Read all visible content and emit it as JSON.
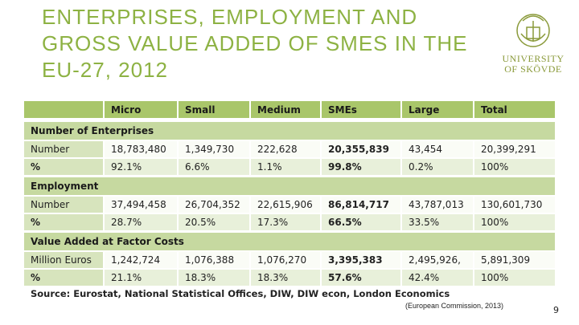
{
  "title_lines": [
    "ENTERPRISES, EMPLOYMENT AND",
    "GROSS VALUE ADDED OF SMES IN THE",
    "EU-27, 2012"
  ],
  "logo": [
    "UNIVERSITY",
    "OF SKÖVDE"
  ],
  "table": {
    "header": [
      "Micro",
      "Small",
      "Medium",
      "SMEs",
      "Large",
      "Total"
    ],
    "sections": [
      {
        "title": "Number of Enterprises",
        "rows": [
          {
            "label": "Number",
            "cells": [
              "18,783,480",
              "1,349,730",
              "222,628",
              "20,355,839",
              "43,454",
              "20,399,291"
            ]
          },
          {
            "label": "%",
            "cells": [
              "92.1%",
              "6.6%",
              "1.1%",
              "99.8%",
              "0.2%",
              "100%"
            ]
          }
        ]
      },
      {
        "title": "Employment",
        "rows": [
          {
            "label": "Number",
            "cells": [
              "37,494,458",
              "26,704,352",
              "22,615,906",
              "86,814,717",
              "43,787,013",
              "130,601,730"
            ]
          },
          {
            "label": "%",
            "cells": [
              "28.7%",
              "20.5%",
              "17.3%",
              "66.5%",
              "33.5%",
              "100%"
            ]
          }
        ]
      },
      {
        "title": "Value Added at Factor Costs",
        "rows": [
          {
            "label": "Million Euros",
            "cells": [
              "1,242,724",
              "1,076,388",
              "1,076,270",
              "3,395,383",
              "2,495,926,",
              "5,891,309"
            ]
          },
          {
            "label": "%",
            "cells": [
              "21.1%",
              "18.3%",
              "18.3%",
              "57.6%",
              "42.4%",
              "100%"
            ]
          }
        ]
      }
    ]
  },
  "source": "Source: Eurostat, National Statistical Offices, DIW, DIW econ, London Economics",
  "citation": "(European Commission, 2013)",
  "page": "9"
}
